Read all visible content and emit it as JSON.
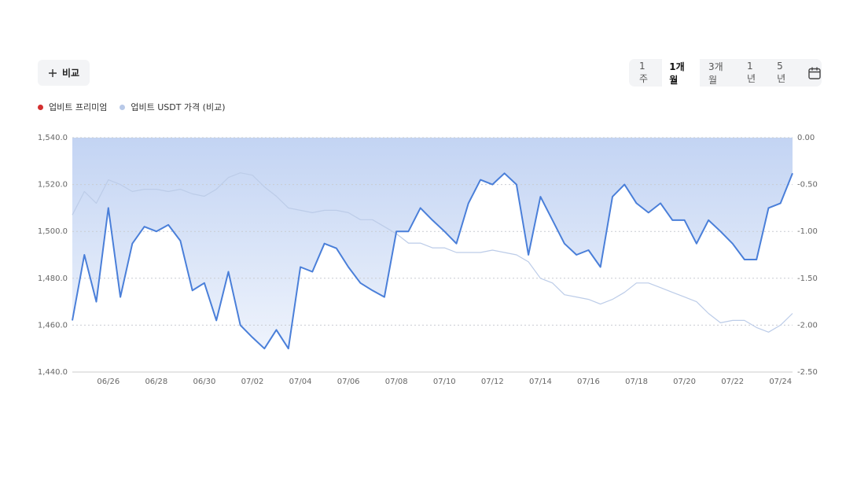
{
  "compare_button": "비교",
  "range_options": [
    "1주",
    "1개월",
    "3개월",
    "1년",
    "5년"
  ],
  "selected_range_index": 1,
  "chart_data": {
    "type": "line",
    "categories": [
      null,
      null,
      null,
      "06/26",
      null,
      null,
      null,
      "06/28",
      null,
      null,
      null,
      "06/30",
      null,
      null,
      null,
      "07/02",
      null,
      null,
      null,
      "07/04",
      null,
      null,
      null,
      "07/06",
      null,
      null,
      null,
      "07/08",
      null,
      null,
      null,
      "07/10",
      null,
      null,
      null,
      "07/12",
      null,
      null,
      null,
      "07/14",
      null,
      null,
      null,
      "07/16",
      null,
      null,
      null,
      "07/18",
      null,
      null,
      null,
      "07/20",
      null,
      null,
      null,
      "07/22",
      null,
      null,
      null,
      "07/24",
      null
    ],
    "series": [
      {
        "name": "업비트 프리미엄",
        "axis": "y2",
        "color": "#4a7fd9",
        "legend_color": "#d32f2f",
        "area": true,
        "values": [
          -1.95,
          -1.25,
          -1.75,
          -0.75,
          -1.7,
          -1.13,
          -0.95,
          -1.0,
          -0.93,
          -1.1,
          -1.63,
          -1.55,
          -1.95,
          -1.43,
          -2.0,
          -2.13,
          -2.25,
          -2.05,
          -2.25,
          -1.38,
          -1.43,
          -1.13,
          -1.18,
          -1.38,
          -1.55,
          -1.63,
          -1.7,
          -1.0,
          -1.0,
          -0.75,
          -0.88,
          -1.0,
          -1.13,
          -0.7,
          -0.45,
          -0.5,
          -0.38,
          -0.5,
          -1.25,
          -0.63,
          -0.88,
          -1.13,
          -1.25,
          -1.2,
          -1.38,
          -0.63,
          -0.5,
          -0.7,
          -0.8,
          -0.7,
          -0.88,
          -0.88,
          -1.13,
          -0.88,
          -1.0,
          -1.13,
          -1.3,
          -1.3,
          -0.75,
          -0.7,
          -0.38
        ]
      },
      {
        "name": "업비트 USDT 가격 (비교)",
        "axis": "y",
        "color": "#bccce8",
        "legend_color": "#b8c9e8",
        "area": false,
        "values": [
          1507,
          1517,
          1512,
          1522,
          1520,
          1517,
          1518,
          1518,
          1517,
          1518,
          1516,
          1515,
          1518,
          1523,
          1525,
          1524,
          1519,
          1515,
          1510,
          1509,
          1508,
          1509,
          1509,
          1508,
          1505,
          1505,
          1502,
          1499,
          1495,
          1495,
          1493,
          1493,
          1491,
          1491,
          1491,
          1492,
          1491,
          1490,
          1487,
          1480,
          1478,
          1473,
          1472,
          1471,
          1469,
          1471,
          1474,
          1478,
          1478,
          1476,
          1474,
          1472,
          1470,
          1465,
          1461,
          1462,
          1462,
          1459,
          1457,
          1460,
          1465
        ]
      }
    ],
    "ylim": [
      1440,
      1540
    ],
    "yticks": [
      {
        "value": 1440,
        "label": "1,440.0"
      },
      {
        "value": 1460,
        "label": "1,460.0"
      },
      {
        "value": 1480,
        "label": "1,480.0"
      },
      {
        "value": 1500,
        "label": "1,500.0"
      },
      {
        "value": 1520,
        "label": "1,520.0"
      },
      {
        "value": 1540,
        "label": "1,540.0"
      }
    ],
    "y2lim": [
      -2.5,
      0
    ],
    "y2ticks": [
      {
        "value": -2.5,
        "label": "-2.50"
      },
      {
        "value": -2,
        "label": "-2.00"
      },
      {
        "value": -1.5,
        "label": "-1.50"
      },
      {
        "value": -1,
        "label": "-1.00"
      },
      {
        "value": -0.5,
        "label": "-0.50"
      },
      {
        "value": 0,
        "label": "0.00"
      }
    ],
    "grid": true
  }
}
